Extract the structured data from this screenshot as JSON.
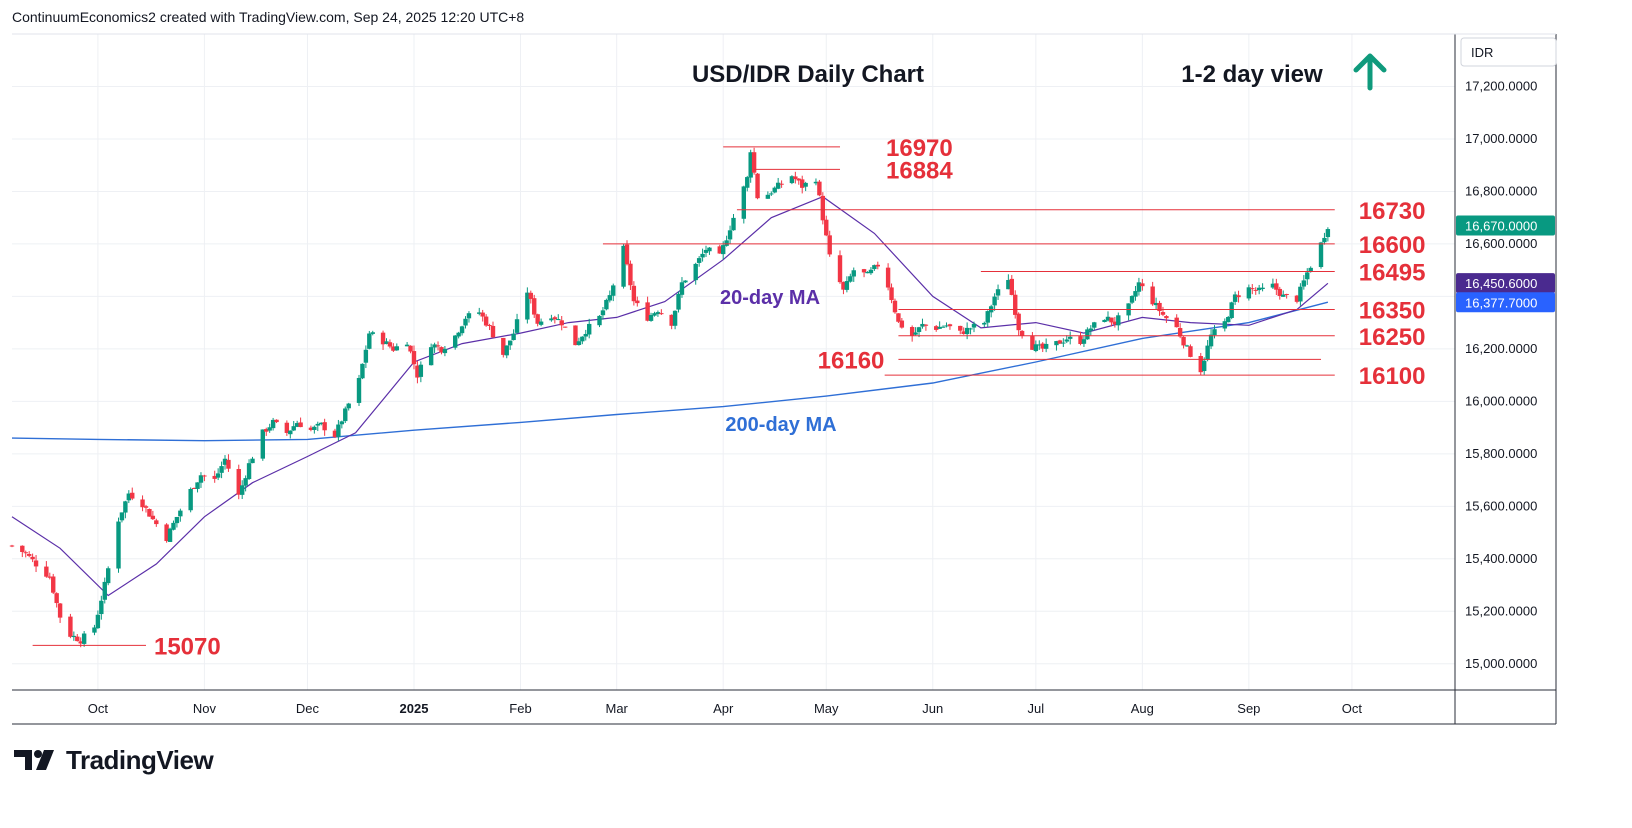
{
  "header": {
    "caption": "ContinuumEconomics2 created with TradingView.com, Sep 24, 2025 12:20 UTC+8"
  },
  "brand": {
    "name": "TradingView"
  },
  "colors": {
    "up": "#089981",
    "down": "#f23645",
    "level": "#e5303a",
    "ma20": "#5b2fa8",
    "ma200": "#2f6fd6",
    "arrow": "#0f9a7c",
    "price_badge": "#089981",
    "ma20_badge": "#4a2a8f",
    "ma200_badge": "#2962ff"
  },
  "chart_data": {
    "type": "candlestick",
    "title": "USD/IDR Daily Chart",
    "view_label": "1-2 day view",
    "view_direction": "up-arrow-icon",
    "currency_label": "IDR",
    "ylim": [
      14900,
      17400
    ],
    "y_ticks": [
      "15,000.0000",
      "15,200.0000",
      "15,400.0000",
      "15,600.0000",
      "15,800.0000",
      "16,000.0000",
      "16,200.0000",
      "16,400.0000",
      "16,600.0000",
      "16,800.0000",
      "17,000.0000",
      "17,200.0000"
    ],
    "y_tick_values": [
      15000,
      15200,
      15400,
      15600,
      15800,
      16000,
      16200,
      16400,
      16600,
      16800,
      17000,
      17200
    ],
    "x_ticks": [
      {
        "label": "Oct",
        "date": "2024-10-01",
        "bold": false
      },
      {
        "label": "Nov",
        "date": "2024-11-01",
        "bold": false
      },
      {
        "label": "Dec",
        "date": "2024-12-01",
        "bold": false
      },
      {
        "label": "2025",
        "date": "2025-01-01",
        "bold": true
      },
      {
        "label": "Feb",
        "date": "2025-02-01",
        "bold": false
      },
      {
        "label": "Mar",
        "date": "2025-03-01",
        "bold": false
      },
      {
        "label": "Apr",
        "date": "2025-04-01",
        "bold": false
      },
      {
        "label": "May",
        "date": "2025-05-01",
        "bold": false
      },
      {
        "label": "Jun",
        "date": "2025-06-01",
        "bold": false
      },
      {
        "label": "Jul",
        "date": "2025-07-01",
        "bold": false
      },
      {
        "label": "Aug",
        "date": "2025-08-01",
        "bold": false
      },
      {
        "label": "Sep",
        "date": "2025-09-01",
        "bold": false
      },
      {
        "label": "Oct",
        "date": "2025-10-01",
        "bold": false
      }
    ],
    "x_range": [
      "2024-09-06",
      "2025-10-31"
    ],
    "path": [
      [
        "2024-09-06",
        15450
      ],
      [
        "2024-09-10",
        15420
      ],
      [
        "2024-09-13",
        15380
      ],
      [
        "2024-09-17",
        15330
      ],
      [
        "2024-09-20",
        15180
      ],
      [
        "2024-09-23",
        15110
      ],
      [
        "2024-09-26",
        15090
      ],
      [
        "2024-09-30",
        15140
      ],
      [
        "2024-10-03",
        15300
      ],
      [
        "2024-10-07",
        15550
      ],
      [
        "2024-10-10",
        15650
      ],
      [
        "2024-10-14",
        15610
      ],
      [
        "2024-10-17",
        15550
      ],
      [
        "2024-10-21",
        15480
      ],
      [
        "2024-10-24",
        15560
      ],
      [
        "2024-10-28",
        15660
      ],
      [
        "2024-10-31",
        15720
      ],
      [
        "2024-11-04",
        15700
      ],
      [
        "2024-11-07",
        15780
      ],
      [
        "2024-11-11",
        15640
      ],
      [
        "2024-11-14",
        15760
      ],
      [
        "2024-11-18",
        15880
      ],
      [
        "2024-11-21",
        15920
      ],
      [
        "2024-11-25",
        15880
      ],
      [
        "2024-11-28",
        15920
      ],
      [
        "2024-12-02",
        15890
      ],
      [
        "2024-12-05",
        15910
      ],
      [
        "2024-12-09",
        15870
      ],
      [
        "2024-12-12",
        15960
      ],
      [
        "2024-12-16",
        16080
      ],
      [
        "2024-12-19",
        16260
      ],
      [
        "2024-12-23",
        16230
      ],
      [
        "2024-12-26",
        16200
      ],
      [
        "2024-12-30",
        16230
      ],
      [
        "2025-01-02",
        16100
      ],
      [
        "2025-01-06",
        16220
      ],
      [
        "2025-01-09",
        16200
      ],
      [
        "2025-01-13",
        16250
      ],
      [
        "2025-01-16",
        16320
      ],
      [
        "2025-01-20",
        16340
      ],
      [
        "2025-01-23",
        16280
      ],
      [
        "2025-01-27",
        16180
      ],
      [
        "2025-01-30",
        16260
      ],
      [
        "2025-02-03",
        16420
      ],
      [
        "2025-02-06",
        16300
      ],
      [
        "2025-02-10",
        16330
      ],
      [
        "2025-02-13",
        16300
      ],
      [
        "2025-02-17",
        16220
      ],
      [
        "2025-02-20",
        16270
      ],
      [
        "2025-02-24",
        16320
      ],
      [
        "2025-02-27",
        16400
      ],
      [
        "2025-03-03",
        16580
      ],
      [
        "2025-03-06",
        16380
      ],
      [
        "2025-03-10",
        16320
      ],
      [
        "2025-03-13",
        16350
      ],
      [
        "2025-03-17",
        16300
      ],
      [
        "2025-03-20",
        16450
      ],
      [
        "2025-03-24",
        16520
      ],
      [
        "2025-03-27",
        16580
      ],
      [
        "2025-03-31",
        16550
      ],
      [
        "2025-04-08",
        16850
      ],
      [
        "2025-04-09",
        16960
      ],
      [
        "2025-04-11",
        16780
      ],
      [
        "2025-04-14",
        16790
      ],
      [
        "2025-04-17",
        16820
      ],
      [
        "2025-04-21",
        16860
      ],
      [
        "2025-04-24",
        16820
      ],
      [
        "2025-04-28",
        16850
      ],
      [
        "2025-04-30",
        16700
      ],
      [
        "2025-05-02",
        16550
      ],
      [
        "2025-05-06",
        16420
      ],
      [
        "2025-05-09",
        16500
      ],
      [
        "2025-05-13",
        16480
      ],
      [
        "2025-05-16",
        16520
      ],
      [
        "2025-05-19",
        16440
      ],
      [
        "2025-05-22",
        16300
      ],
      [
        "2025-05-26",
        16250
      ],
      [
        "2025-05-29",
        16290
      ],
      [
        "2025-06-02",
        16280
      ],
      [
        "2025-06-05",
        16290
      ],
      [
        "2025-06-09",
        16260
      ],
      [
        "2025-06-12",
        16280
      ],
      [
        "2025-06-16",
        16300
      ],
      [
        "2025-06-19",
        16400
      ],
      [
        "2025-06-23",
        16470
      ],
      [
        "2025-06-26",
        16280
      ],
      [
        "2025-06-30",
        16210
      ],
      [
        "2025-07-03",
        16200
      ],
      [
        "2025-07-07",
        16220
      ],
      [
        "2025-07-10",
        16240
      ],
      [
        "2025-07-14",
        16230
      ],
      [
        "2025-07-17",
        16280
      ],
      [
        "2025-07-21",
        16320
      ],
      [
        "2025-07-24",
        16300
      ],
      [
        "2025-07-28",
        16360
      ],
      [
        "2025-07-31",
        16450
      ],
      [
        "2025-08-04",
        16380
      ],
      [
        "2025-08-07",
        16330
      ],
      [
        "2025-08-11",
        16280
      ],
      [
        "2025-08-14",
        16200
      ],
      [
        "2025-08-18",
        16120
      ],
      [
        "2025-08-21",
        16250
      ],
      [
        "2025-08-25",
        16300
      ],
      [
        "2025-08-28",
        16400
      ],
      [
        "2025-09-01",
        16430
      ],
      [
        "2025-09-04",
        16420
      ],
      [
        "2025-09-08",
        16440
      ],
      [
        "2025-09-11",
        16400
      ],
      [
        "2025-09-15",
        16390
      ],
      [
        "2025-09-18",
        16490
      ],
      [
        "2025-09-22",
        16600
      ],
      [
        "2025-09-24",
        16670
      ]
    ],
    "ma20": [
      [
        "2024-09-06",
        15560
      ],
      [
        "2024-09-20",
        15440
      ],
      [
        "2024-10-04",
        15260
      ],
      [
        "2024-10-18",
        15380
      ],
      [
        "2024-11-01",
        15560
      ],
      [
        "2024-11-15",
        15690
      ],
      [
        "2024-12-01",
        15790
      ],
      [
        "2024-12-15",
        15880
      ],
      [
        "2025-01-01",
        16150
      ],
      [
        "2025-01-15",
        16220
      ],
      [
        "2025-02-01",
        16260
      ],
      [
        "2025-02-15",
        16300
      ],
      [
        "2025-03-01",
        16320
      ],
      [
        "2025-03-15",
        16380
      ],
      [
        "2025-04-01",
        16540
      ],
      [
        "2025-04-15",
        16700
      ],
      [
        "2025-04-30",
        16780
      ],
      [
        "2025-05-15",
        16640
      ],
      [
        "2025-06-01",
        16400
      ],
      [
        "2025-06-15",
        16280
      ],
      [
        "2025-07-01",
        16300
      ],
      [
        "2025-07-15",
        16260
      ],
      [
        "2025-08-01",
        16320
      ],
      [
        "2025-08-15",
        16300
      ],
      [
        "2025-09-01",
        16290
      ],
      [
        "2025-09-15",
        16350
      ],
      [
        "2025-09-24",
        16450
      ]
    ],
    "ma200": [
      [
        "2024-09-06",
        15860
      ],
      [
        "2024-10-01",
        15855
      ],
      [
        "2024-11-01",
        15850
      ],
      [
        "2024-12-01",
        15855
      ],
      [
        "2025-01-01",
        15890
      ],
      [
        "2025-02-01",
        15920
      ],
      [
        "2025-03-01",
        15950
      ],
      [
        "2025-04-01",
        15980
      ],
      [
        "2025-05-01",
        16020
      ],
      [
        "2025-06-01",
        16070
      ],
      [
        "2025-07-01",
        16150
      ],
      [
        "2025-08-01",
        16240
      ],
      [
        "2025-09-01",
        16300
      ],
      [
        "2025-09-24",
        16378
      ]
    ],
    "levels": [
      {
        "label": "16970",
        "value": 16970,
        "from": "2025-04-01",
        "to": "2025-05-05"
      },
      {
        "label": "16884",
        "value": 16884,
        "from": "2025-04-10",
        "to": "2025-05-05"
      },
      {
        "label": "16730",
        "value": 16730,
        "from": "2025-04-05",
        "to": "2025-09-26"
      },
      {
        "label": "16600",
        "value": 16600,
        "from": "2025-02-25",
        "to": "2025-09-26"
      },
      {
        "label": "16495",
        "value": 16495,
        "from": "2025-06-15",
        "to": "2025-09-26"
      },
      {
        "label": "16350",
        "value": 16350,
        "from": "2025-05-22",
        "to": "2025-09-26"
      },
      {
        "label": "16250",
        "value": 16250,
        "from": "2025-05-22",
        "to": "2025-09-26"
      },
      {
        "label": "16160",
        "value": 16160,
        "from": "2025-05-22",
        "to": "2025-09-22"
      },
      {
        "label": "16100",
        "value": 16100,
        "from": "2025-05-18",
        "to": "2025-09-26"
      },
      {
        "label": "15070",
        "value": 15070,
        "from": "2024-09-12",
        "to": "2024-10-15"
      }
    ],
    "annotations": [
      {
        "label": "20-day MA",
        "color": "#5b2fa8"
      },
      {
        "label": "200-day MA",
        "color": "#2f6fd6"
      }
    ],
    "price_badges": [
      {
        "label": "16,670.0000",
        "value": 16670,
        "color": "#089981"
      },
      {
        "label": "16,450.6000",
        "value": 16450.6,
        "color": "#4a2a8f"
      },
      {
        "label": "16,377.7000",
        "value": 16377.7,
        "color": "#2962ff"
      }
    ],
    "grid": true,
    "legend": "none"
  }
}
